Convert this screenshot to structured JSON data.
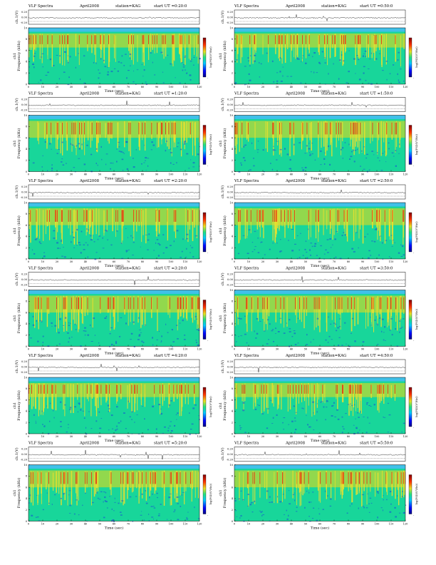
{
  "figure": {
    "header": {
      "title": "VLF Spectra",
      "date": "April2008",
      "station": "station=KAG",
      "start_prefix": "start UT ="
    },
    "labels": {
      "xlabel": "Time (sec)",
      "ylabel_freq": "Frequency (kHz)",
      "ylabel_ch": "ch1",
      "amp_label": "ch.1(V)",
      "colorbar_label": "log(PSD(V²/Hz))"
    },
    "colors": {
      "background": "#18d69a",
      "band": "#e8e030",
      "hot": "#e02010",
      "cold": "#1848d8",
      "noise": "#a8d840"
    },
    "start_times": [
      "0:20:0",
      "0:50:0",
      "1:20:0",
      "1:50:0",
      "2:20:0",
      "2:50:0",
      "3:20:0",
      "3:50:0",
      "4:20:0",
      "4:50:0",
      "5:20:0",
      "5:50:0"
    ],
    "amp_ticks": [
      "0.20",
      "0.00",
      "-0.20"
    ],
    "colorbar_ticks": [
      "-",
      "-"
    ]
  },
  "chart_data": {
    "type": "heatmap",
    "layout": "6 rows x 2 columns of spectrogram panels",
    "x": {
      "label": "Time (sec)",
      "range": [
        0,
        120
      ],
      "ticks": [
        0,
        10,
        20,
        30,
        40,
        50,
        60,
        70,
        80,
        90,
        100,
        110,
        120
      ]
    },
    "y": {
      "label": "Frequency (kHz)",
      "range": [
        0,
        10
      ],
      "ticks": [
        0,
        2,
        4,
        6,
        8,
        10
      ]
    },
    "colorbar": {
      "label": "log(PSD(V²/Hz))"
    },
    "panels": [
      {
        "start_ut": "0:20:0",
        "band_khz": [
          6.5,
          9.0
        ]
      },
      {
        "start_ut": "0:50:0",
        "band_khz": [
          6.5,
          9.0
        ]
      },
      {
        "start_ut": "1:20:0",
        "band_khz": [
          6.0,
          9.0
        ]
      },
      {
        "start_ut": "1:50:0",
        "band_khz": [
          6.0,
          9.0
        ]
      },
      {
        "start_ut": "2:20:0",
        "band_khz": [
          6.0,
          9.0
        ]
      },
      {
        "start_ut": "2:50:0",
        "band_khz": [
          6.0,
          9.0
        ]
      },
      {
        "start_ut": "3:20:0",
        "band_khz": [
          6.0,
          9.0
        ]
      },
      {
        "start_ut": "3:50:0",
        "band_khz": [
          6.0,
          9.0
        ]
      },
      {
        "start_ut": "4:20:0",
        "band_khz": [
          6.5,
          9.0
        ]
      },
      {
        "start_ut": "4:50:0",
        "band_khz": [
          6.5,
          9.0
        ]
      },
      {
        "start_ut": "5:20:0",
        "band_khz": [
          6.0,
          9.0
        ]
      },
      {
        "start_ut": "5:50:0",
        "band_khz": [
          6.0,
          9.0
        ]
      }
    ]
  }
}
